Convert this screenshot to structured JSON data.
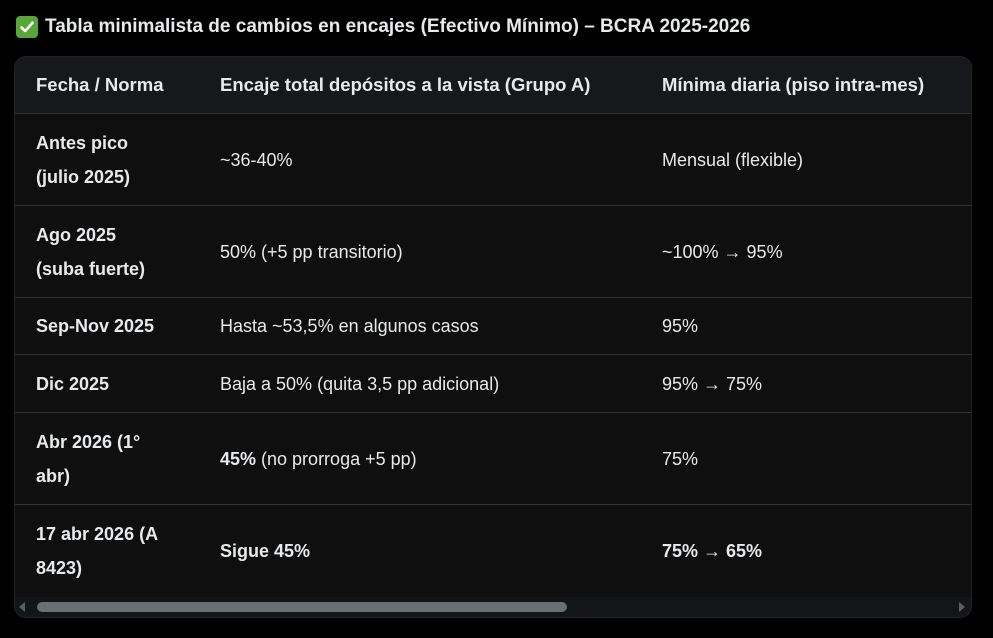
{
  "title": {
    "icon": "check-mark-icon",
    "text": "Tabla minimalista de cambios en encajes (Efectivo Mínimo) – BCRA 2025-2026"
  },
  "table": {
    "headers": [
      "Fecha / Norma",
      "Encaje total depósitos a la vista (Grupo A)",
      "Mínima diaria (piso intra-mes)"
    ],
    "rows": [
      {
        "date": "Antes pico (julio 2025)",
        "encaje_bold": "",
        "encaje": "~36-40%",
        "minima": "Mensual (flexible)",
        "minima_bold": false
      },
      {
        "date": "Ago 2025 (suba fuerte)",
        "encaje_bold": "",
        "encaje": "50% (+5 pp transitorio)",
        "minima": "~100% → 95%",
        "minima_bold": false
      },
      {
        "date": "Sep-Nov 2025",
        "encaje_bold": "",
        "encaje": "Hasta ~53,5% en algunos casos",
        "minima": "95%",
        "minima_bold": false
      },
      {
        "date": "Dic 2025",
        "encaje_bold": "",
        "encaje": "Baja a 50% (quita 3,5 pp adicional)",
        "minima": "95% → 75%",
        "minima_bold": false
      },
      {
        "date": "Abr 2026 (1° abr)",
        "encaje_bold": "45%",
        "encaje": " (no prorroga +5 pp)",
        "minima": "75%",
        "minima_bold": false
      },
      {
        "date": "17 abr 2026 (A 8423)",
        "encaje_bold": "Sigue 45%",
        "encaje": "",
        "minima": "75% → 65%",
        "minima_bold": true
      }
    ]
  },
  "colors": {
    "background": "#000000",
    "table_bg": "#0f0f10",
    "header_bg": "#16181c",
    "divider": "#2f3336",
    "text": "#e7e9ea",
    "check_green": "#5aa53a"
  }
}
